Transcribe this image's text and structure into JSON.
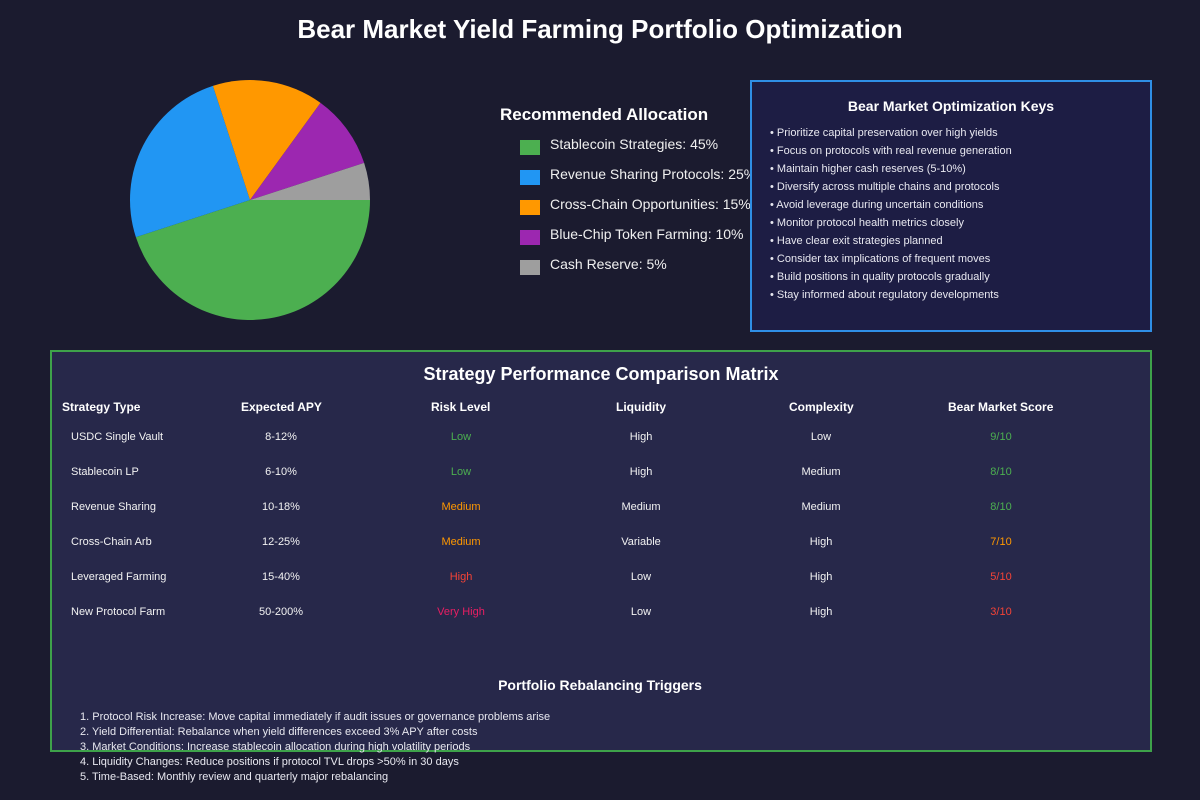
{
  "title": "Bear Market Yield Farming Portfolio Optimization",
  "chart_data": {
    "type": "pie",
    "title": "Recommended Allocation",
    "categories": [
      "Stablecoin Strategies",
      "Revenue Sharing Protocols",
      "Cross-Chain Opportunities",
      "Blue-Chip Token Farming",
      "Cash Reserve"
    ],
    "values": [
      45,
      25,
      15,
      10,
      5
    ],
    "colors": [
      "#4caf50",
      "#2196f3",
      "#ff9800",
      "#9c27b0",
      "#9e9e9e"
    ],
    "legend_labels": [
      "Stablecoin Strategies: 45%",
      "Revenue Sharing Protocols: 25%",
      "Cross-Chain Opportunities: 15%",
      "Blue-Chip Token Farming: 10%",
      "Cash Reserve: 5%"
    ],
    "legend_placement": "right"
  },
  "keys": {
    "title": "Bear Market Optimization Keys",
    "items": [
      "• Prioritize capital preservation over high yields",
      "• Focus on protocols with real revenue generation",
      "• Maintain higher cash reserves (5-10%)",
      "• Diversify across multiple chains and protocols",
      "• Avoid leverage during uncertain conditions",
      "• Monitor protocol health metrics closely",
      "• Have clear exit strategies planned",
      "• Consider tax implications of frequent moves",
      "• Build positions in quality protocols gradually",
      "• Stay informed about regulatory developments"
    ]
  },
  "matrix": {
    "title": "Strategy Performance Comparison Matrix",
    "headers": [
      "Strategy Type",
      "Expected APY",
      "Risk Level",
      "Liquidity",
      "Complexity",
      "Bear Market Score"
    ],
    "rows": [
      {
        "strategy": "USDC Single Vault",
        "apy": "8-12%",
        "risk": "Low",
        "risk_color": "#4caf50",
        "liquidity": "High",
        "complexity": "Low",
        "score": "9/10",
        "score_color": "#4caf50"
      },
      {
        "strategy": "Stablecoin LP",
        "apy": "6-10%",
        "risk": "Low",
        "risk_color": "#4caf50",
        "liquidity": "High",
        "complexity": "Medium",
        "score": "8/10",
        "score_color": "#4caf50"
      },
      {
        "strategy": "Revenue Sharing",
        "apy": "10-18%",
        "risk": "Medium",
        "risk_color": "#ff9800",
        "liquidity": "Medium",
        "complexity": "Medium",
        "score": "8/10",
        "score_color": "#4caf50"
      },
      {
        "strategy": "Cross-Chain Arb",
        "apy": "12-25%",
        "risk": "Medium",
        "risk_color": "#ff9800",
        "liquidity": "Variable",
        "complexity": "High",
        "score": "7/10",
        "score_color": "#ff9800"
      },
      {
        "strategy": "Leveraged Farming",
        "apy": "15-40%",
        "risk": "High",
        "risk_color": "#f44336",
        "liquidity": "Low",
        "complexity": "High",
        "score": "5/10",
        "score_color": "#f44336"
      },
      {
        "strategy": "New Protocol Farm",
        "apy": "50-200%",
        "risk": "Very High",
        "risk_color": "#e91e63",
        "liquidity": "Low",
        "complexity": "High",
        "score": "3/10",
        "score_color": "#f44336"
      }
    ]
  },
  "triggers": {
    "title": "Portfolio Rebalancing Triggers",
    "items": [
      "1. Protocol Risk Increase: Move capital immediately if audit issues or governance problems arise",
      "2. Yield Differential: Rebalance when yield differences exceed 3% APY after costs",
      "3. Market Conditions: Increase stablecoin allocation during high volatility periods",
      "4. Liquidity Changes: Reduce positions if protocol TVL drops >50% in 30 days",
      "5. Time-Based: Monthly review and quarterly major rebalancing"
    ]
  }
}
